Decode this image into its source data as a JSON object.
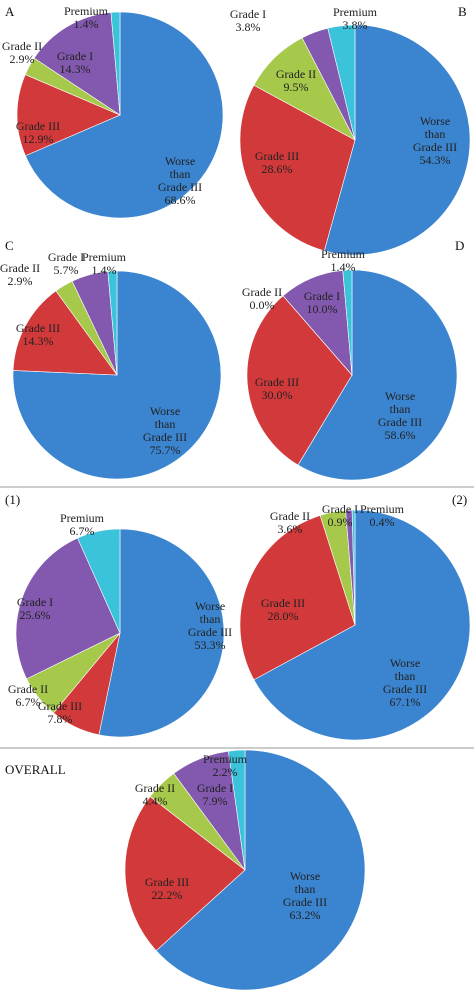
{
  "chart_data": [
    {
      "type": "pie",
      "title": "A",
      "categories": [
        "Worse than Grade III",
        "Grade III",
        "Grade II",
        "Grade I",
        "Premium"
      ],
      "values": [
        68.6,
        12.9,
        2.9,
        14.3,
        1.4
      ],
      "value_labels": [
        "68.6%",
        "12.9%",
        "2.9%",
        "14.3%",
        "1.4%"
      ],
      "colors": [
        "#3b85d0",
        "#d2393a",
        "#a7c94b",
        "#8259ae",
        "#3ac3db"
      ]
    },
    {
      "type": "pie",
      "title": "B",
      "categories": [
        "Worse than Grade III",
        "Grade III",
        "Grade II",
        "Grade I",
        "Premium"
      ],
      "values": [
        54.3,
        28.6,
        9.5,
        3.8,
        3.8
      ],
      "value_labels": [
        "54.3%",
        "28.6%",
        "9.5%",
        "3.8%",
        "3.8%"
      ],
      "colors": [
        "#3b85d0",
        "#d2393a",
        "#a7c94b",
        "#8259ae",
        "#3ac3db"
      ]
    },
    {
      "type": "pie",
      "title": "C",
      "categories": [
        "Worse than Grade III",
        "Grade III",
        "Grade II",
        "Grade I",
        "Premium"
      ],
      "values": [
        75.7,
        14.3,
        2.9,
        5.7,
        1.4
      ],
      "value_labels": [
        "75.7%",
        "14.3%",
        "2.9%",
        "5.7%",
        "1.4%"
      ],
      "colors": [
        "#3b85d0",
        "#d2393a",
        "#a7c94b",
        "#8259ae",
        "#3ac3db"
      ]
    },
    {
      "type": "pie",
      "title": "D",
      "categories": [
        "Worse than Grade III",
        "Grade III",
        "Grade II",
        "Grade I",
        "Premium"
      ],
      "values": [
        58.6,
        30.0,
        0.0,
        10.0,
        1.4
      ],
      "value_labels": [
        "58.6%",
        "30.0%",
        "0.0%",
        "10.0%",
        "1.4%"
      ],
      "colors": [
        "#3b85d0",
        "#d2393a",
        "#a7c94b",
        "#8259ae",
        "#3ac3db"
      ]
    },
    {
      "type": "pie",
      "title": "(1)",
      "categories": [
        "Worse than Grade III",
        "Grade III",
        "Grade II",
        "Grade I",
        "Premium"
      ],
      "values": [
        53.3,
        7.8,
        6.7,
        25.6,
        6.7
      ],
      "value_labels": [
        "53.3%",
        "7.8%",
        "6.7%",
        "25.6%",
        "6.7%"
      ],
      "colors": [
        "#3b85d0",
        "#d2393a",
        "#a7c94b",
        "#8259ae",
        "#3ac3db"
      ]
    },
    {
      "type": "pie",
      "title": "(2)",
      "categories": [
        "Worse than Grade III",
        "Grade III",
        "Grade II",
        "Grade I",
        "Premium"
      ],
      "values": [
        67.1,
        28.0,
        3.6,
        0.9,
        0.4
      ],
      "value_labels": [
        "67.1%",
        "28.0%",
        "3.6%",
        "0.9%",
        "0.4%"
      ],
      "colors": [
        "#3b85d0",
        "#d2393a",
        "#a7c94b",
        "#8259ae",
        "#3ac3db"
      ]
    },
    {
      "type": "pie",
      "title": "OVERALL",
      "categories": [
        "Worse than Grade III",
        "Grade III",
        "Grade II",
        "Grade I",
        "Premium"
      ],
      "values": [
        63.2,
        22.2,
        4.4,
        7.9,
        2.2
      ],
      "value_labels": [
        "63.2%",
        "22.2%",
        "4.4%",
        "7.9%",
        "2.2%"
      ],
      "colors": [
        "#3b85d0",
        "#d2393a",
        "#a7c94b",
        "#8259ae",
        "#3ac3db"
      ]
    }
  ]
}
